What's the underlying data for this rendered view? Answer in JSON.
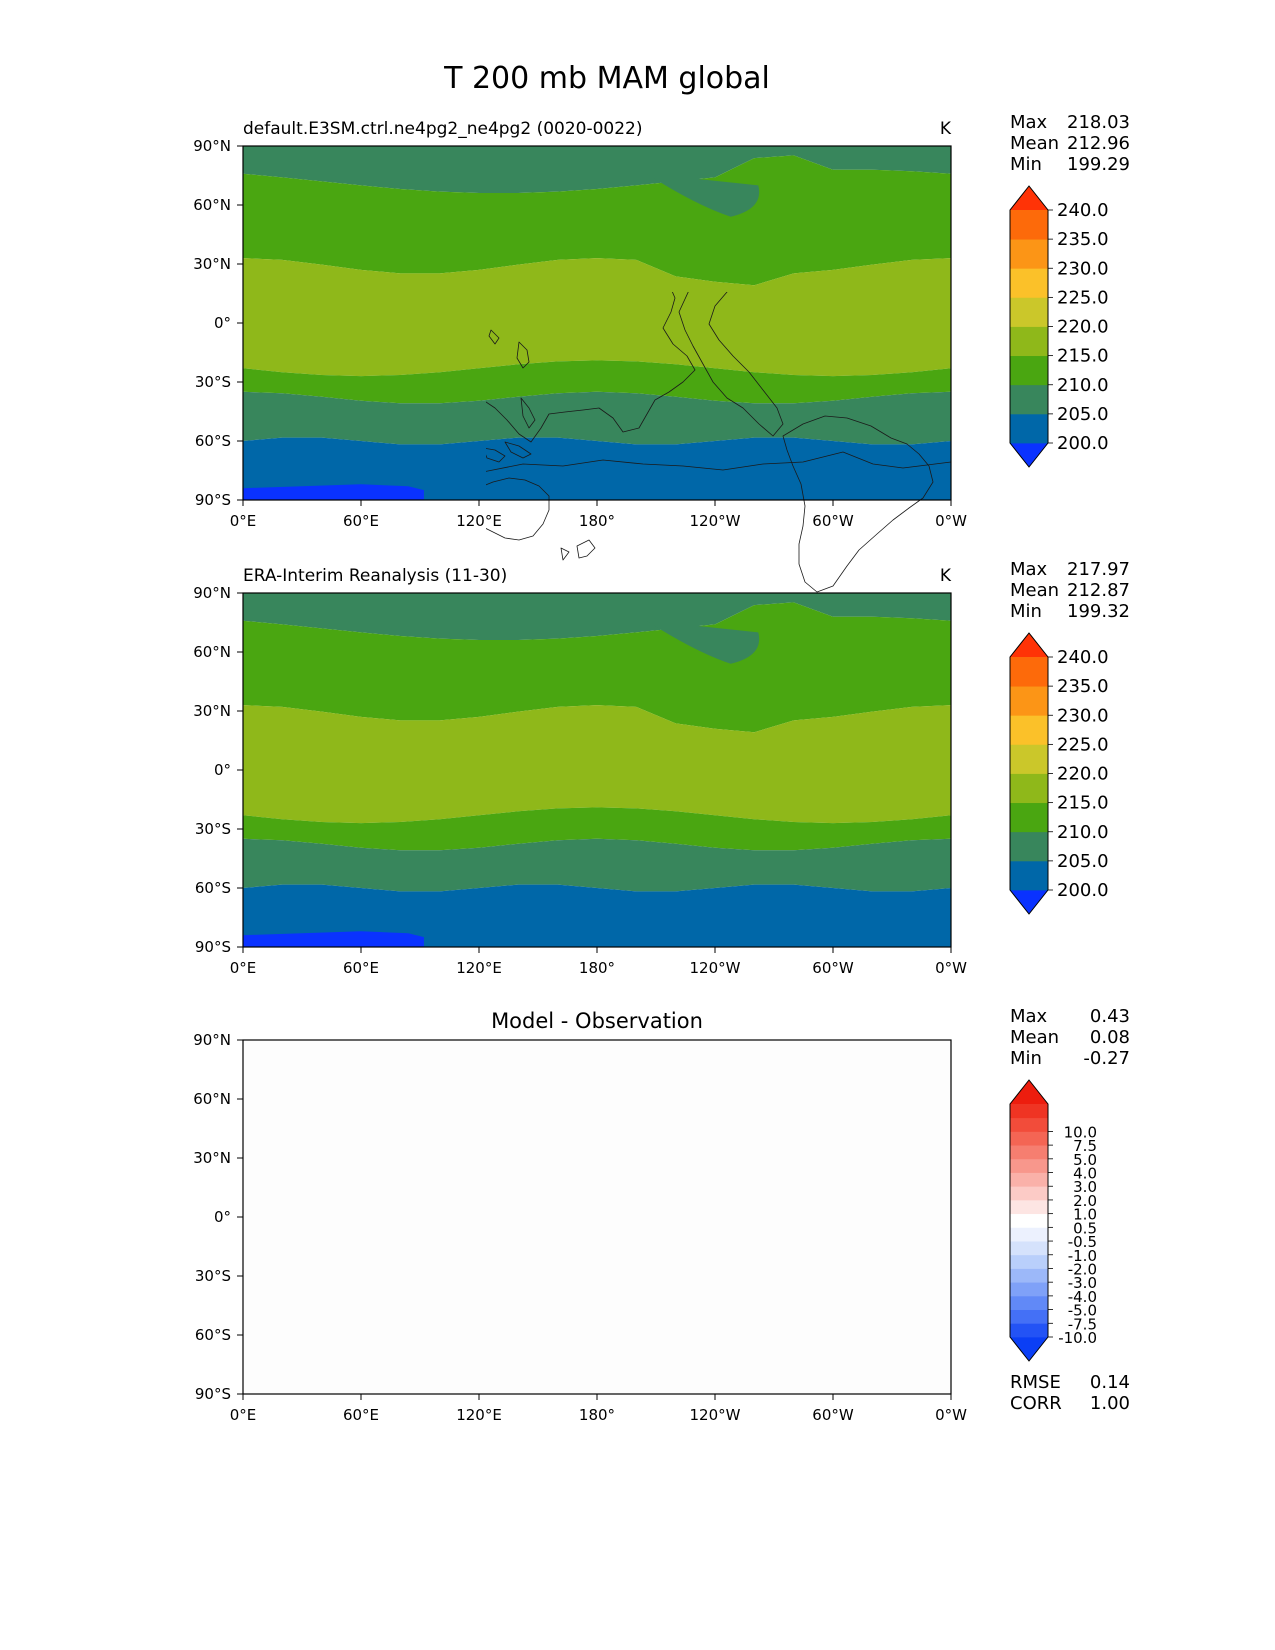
{
  "figure": {
    "title": "T 200 mb MAM global"
  },
  "axes": {
    "x_ticks": [
      "0°E",
      "60°E",
      "120°E",
      "180°",
      "120°W",
      "60°W",
      "0°W"
    ],
    "y_ticks": [
      "90°N",
      "60°N",
      "30°N",
      "0°",
      "30°S",
      "60°S",
      "90°S"
    ]
  },
  "colors": {
    "main": [
      "#0a32ff",
      "#0067a8",
      "#38865c",
      "#4aa611",
      "#8fb81a",
      "#cbc72a",
      "#fbc129",
      "#fc9516",
      "#fd6a0a",
      "#ff3306"
    ],
    "diff": [
      "#0b3ff5",
      "#2353f5",
      "#4470f6",
      "#6189f7",
      "#7fa1f8",
      "#9cb8f9",
      "#b9cffb",
      "#d5e2fc",
      "#ecf1fe",
      "#ffffff",
      "#fde5e3",
      "#fccbc6",
      "#fab1a9",
      "#f8978c",
      "#f67e70",
      "#f46554",
      "#f24c3a",
      "#ef3423",
      "#ed1d0e"
    ]
  },
  "chart_data": [
    {
      "type": "heatmap",
      "panel": "model",
      "title": "default.E3SM.ctrl.ne4pg2_ne4pg2 (0020-0022)",
      "units": "K",
      "xlabel": "",
      "ylabel": "",
      "xlim": [
        0,
        360
      ],
      "ylim": [
        -90,
        90
      ],
      "x_ticks": [
        "0°E",
        "60°E",
        "120°E",
        "180°",
        "120°W",
        "60°W",
        "0°W"
      ],
      "y_ticks": [
        "90°N",
        "60°N",
        "30°N",
        "0°",
        "30°S",
        "60°S",
        "90°S"
      ],
      "stats": [
        {
          "label": "Max",
          "value": "218.03"
        },
        {
          "label": "Mean",
          "value": "212.96"
        },
        {
          "label": "Min",
          "value": "199.29"
        }
      ],
      "colorbar": {
        "extend": "both",
        "levels": [
          "200.0",
          "205.0",
          "210.0",
          "215.0",
          "220.0",
          "225.0",
          "230.0",
          "235.0",
          "240.0"
        ]
      },
      "field_bands_K_by_latitude": [
        {
          "lat_range": [
            -90,
            -85
          ],
          "value_range": "<200"
        },
        {
          "lat_range": [
            -85,
            -60
          ],
          "value_range": "200-205"
        },
        {
          "lat_range": [
            -60,
            -40
          ],
          "value_range": "205-210"
        },
        {
          "lat_range": [
            -40,
            -25
          ],
          "value_range": "210-215"
        },
        {
          "lat_range": [
            -25,
            25
          ],
          "value_range": "215-220"
        },
        {
          "lat_range": [
            25,
            70
          ],
          "value_range": "210-215"
        },
        {
          "lat_range": [
            70,
            90
          ],
          "value_range": "205-210"
        }
      ]
    },
    {
      "type": "heatmap",
      "panel": "observation",
      "title": "ERA-Interim Reanalysis (11-30)",
      "units": "K",
      "xlabel": "",
      "ylabel": "",
      "xlim": [
        0,
        360
      ],
      "ylim": [
        -90,
        90
      ],
      "x_ticks": [
        "0°E",
        "60°E",
        "120°E",
        "180°",
        "120°W",
        "60°W",
        "0°W"
      ],
      "y_ticks": [
        "90°N",
        "60°N",
        "30°N",
        "0°",
        "30°S",
        "60°S",
        "90°S"
      ],
      "stats": [
        {
          "label": "Max",
          "value": "217.97"
        },
        {
          "label": "Mean",
          "value": "212.87"
        },
        {
          "label": "Min",
          "value": "199.32"
        }
      ],
      "colorbar": {
        "extend": "both",
        "levels": [
          "200.0",
          "205.0",
          "210.0",
          "215.0",
          "220.0",
          "225.0",
          "230.0",
          "235.0",
          "240.0"
        ]
      },
      "field_bands_K_by_latitude": [
        {
          "lat_range": [
            -90,
            -85
          ],
          "value_range": "<200"
        },
        {
          "lat_range": [
            -85,
            -60
          ],
          "value_range": "200-205"
        },
        {
          "lat_range": [
            -60,
            -40
          ],
          "value_range": "205-210"
        },
        {
          "lat_range": [
            -40,
            -25
          ],
          "value_range": "210-215"
        },
        {
          "lat_range": [
            -25,
            25
          ],
          "value_range": "215-220"
        },
        {
          "lat_range": [
            25,
            70
          ],
          "value_range": "210-215"
        },
        {
          "lat_range": [
            70,
            90
          ],
          "value_range": "205-210"
        }
      ]
    },
    {
      "type": "heatmap",
      "panel": "difference",
      "title": "Model - Observation",
      "units": "",
      "xlabel": "",
      "ylabel": "",
      "xlim": [
        0,
        360
      ],
      "ylim": [
        -90,
        90
      ],
      "x_ticks": [
        "0°E",
        "60°E",
        "120°E",
        "180°",
        "120°W",
        "60°W",
        "0°W"
      ],
      "y_ticks": [
        "90°N",
        "60°N",
        "30°N",
        "0°",
        "30°S",
        "60°S",
        "90°S"
      ],
      "stats": [
        {
          "label": "Max",
          "value": "0.43"
        },
        {
          "label": "Mean",
          "value": "0.08"
        },
        {
          "label": "Min",
          "value": "-0.27"
        }
      ],
      "colorbar": {
        "extend": "both",
        "levels": [
          "-10.0",
          "-7.5",
          "-5.0",
          "-4.0",
          "-3.0",
          "-2.0",
          "-1.0",
          "-0.5",
          "0.5",
          "1.0",
          "2.0",
          "3.0",
          "4.0",
          "5.0",
          "7.5",
          "10.0"
        ]
      },
      "metrics": [
        {
          "label": "RMSE",
          "value": "0.14"
        },
        {
          "label": "CORR",
          "value": "1.00"
        }
      ],
      "field_value_range": "-0.5-0.5"
    }
  ]
}
